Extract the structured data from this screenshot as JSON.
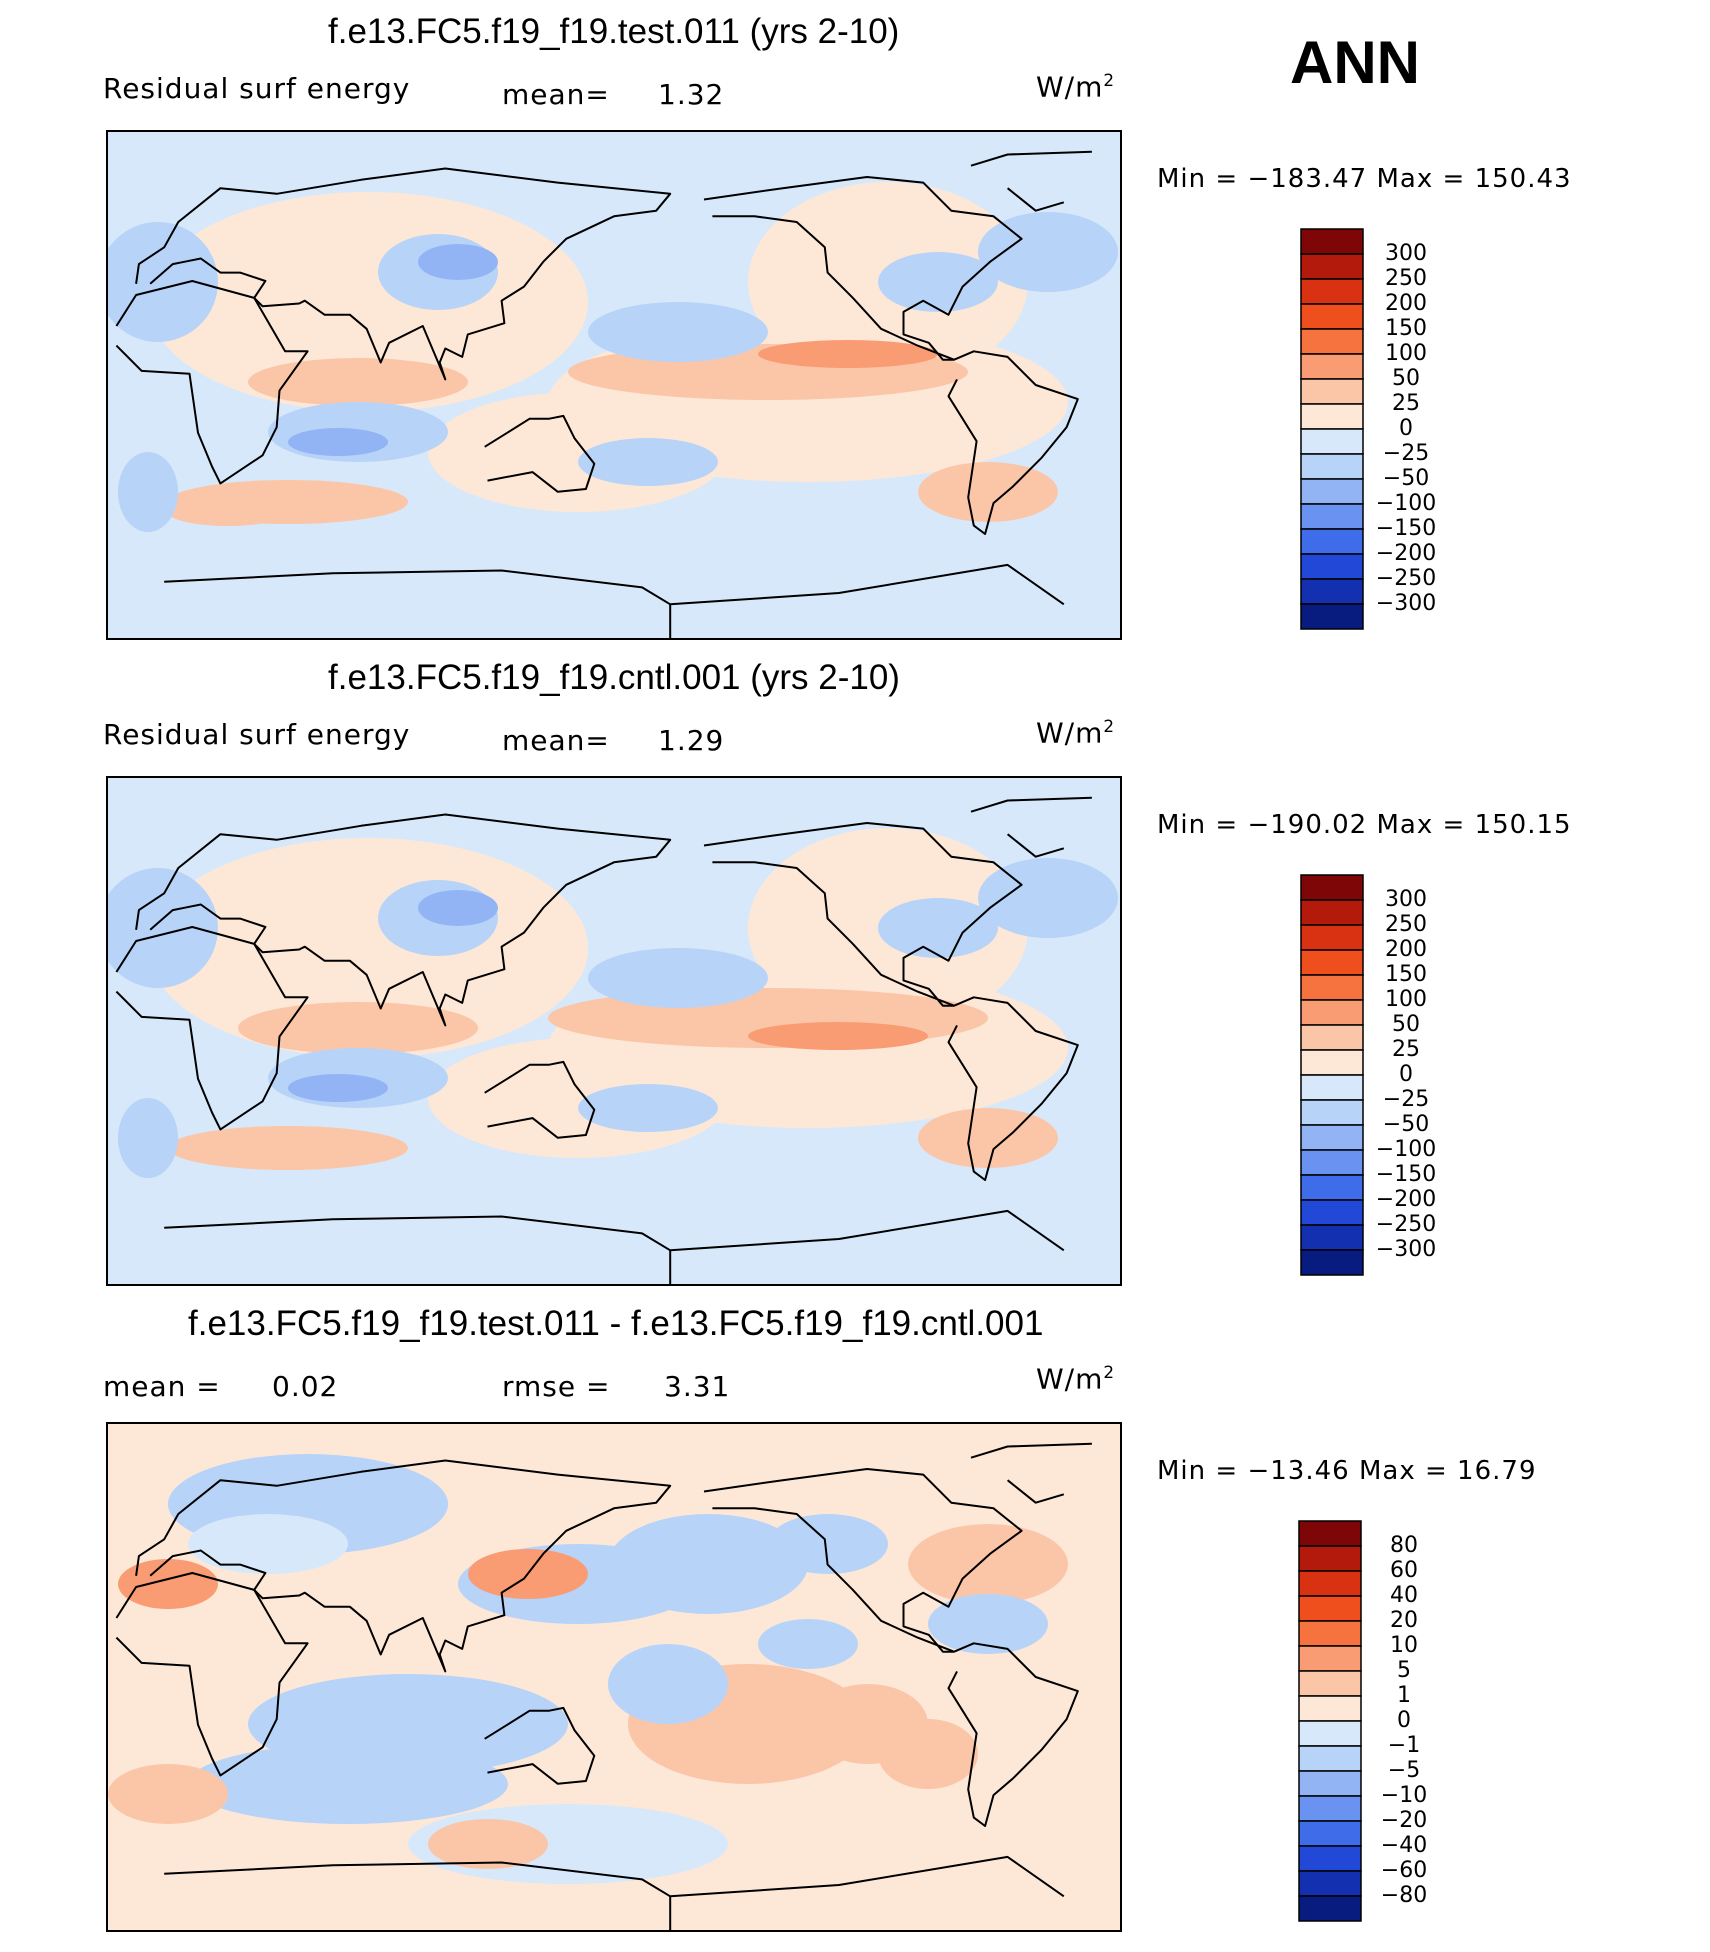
{
  "season": "ANN",
  "colors": {
    "positive": [
      "#FDE8D8",
      "#FBC6A8",
      "#F99C73",
      "#F6723F",
      "#EF4F1C",
      "#D83212",
      "#B31A0C",
      "#7E0607"
    ],
    "negative": [
      "#D6E8FA",
      "#B8D3F8",
      "#92B4F5",
      "#6A92F0",
      "#3F6DEA",
      "#2248D8",
      "#1230B0",
      "#081C80"
    ]
  },
  "panels": [
    {
      "title": "f.e13.FC5.f19_f19.test.011 (yrs 2-10)",
      "left_label": "Residual surf energy",
      "mid_label": "mean=",
      "mid_value": "1.32",
      "units_base": "W/m",
      "units_exp": "2",
      "min_label": "Min",
      "min_value": "−183.47",
      "max_label": "Max",
      "max_value": "150.43",
      "colorbar_levels": [
        "300",
        "250",
        "200",
        "150",
        "100",
        "50",
        "25",
        "0",
        "−25",
        "−50",
        "−100",
        "−150",
        "−200",
        "−250",
        "−300"
      ]
    },
    {
      "title": "f.e13.FC5.f19_f19.cntl.001 (yrs 2-10)",
      "left_label": "Residual surf energy",
      "mid_label": "mean=",
      "mid_value": "1.29",
      "units_base": "W/m",
      "units_exp": "2",
      "min_label": "Min",
      "min_value": "−190.02",
      "max_label": "Max",
      "max_value": "150.15",
      "colorbar_levels": [
        "300",
        "250",
        "200",
        "150",
        "100",
        "50",
        "25",
        "0",
        "−25",
        "−50",
        "−100",
        "−150",
        "−200",
        "−250",
        "−300"
      ]
    },
    {
      "title": "f.e13.FC5.f19_f19.test.011 - f.e13.FC5.f19_f19.cntl.001",
      "left_label": "mean =",
      "left_value": "0.02",
      "mid_label": "rmse =",
      "mid_value": "3.31",
      "units_base": "W/m",
      "units_exp": "2",
      "min_label": "Min",
      "min_value": "−13.46",
      "max_label": "Max",
      "max_value": "16.79",
      "colorbar_levels": [
        "80",
        "60",
        "40",
        "20",
        "10",
        "5",
        "1",
        "0",
        "−1",
        "−5",
        "−10",
        "−20",
        "−40",
        "−60",
        "−80"
      ]
    }
  ],
  "chart_data": [
    {
      "type": "heatmap",
      "title": "f.e13.FC5.f19_f19.test.011 (yrs 2-10)",
      "variable": "Residual surf energy",
      "units": "W/m2",
      "mean": 1.32,
      "min": -183.47,
      "max": 150.43,
      "contour_levels": [
        -300,
        -250,
        -200,
        -150,
        -100,
        -50,
        -25,
        0,
        25,
        50,
        100,
        150,
        200,
        250,
        300
      ]
    },
    {
      "type": "heatmap",
      "title": "f.e13.FC5.f19_f19.cntl.001 (yrs 2-10)",
      "variable": "Residual surf energy",
      "units": "W/m2",
      "mean": 1.29,
      "min": -190.02,
      "max": 150.15,
      "contour_levels": [
        -300,
        -250,
        -200,
        -150,
        -100,
        -50,
        -25,
        0,
        25,
        50,
        100,
        150,
        200,
        250,
        300
      ]
    },
    {
      "type": "heatmap",
      "title": "f.e13.FC5.f19_f19.test.011 - f.e13.FC5.f19_f19.cntl.001",
      "units": "W/m2",
      "mean": 0.02,
      "rmse": 3.31,
      "min": -13.46,
      "max": 16.79,
      "contour_levels": [
        -80,
        -60,
        -40,
        -20,
        -10,
        -5,
        -1,
        0,
        1,
        5,
        10,
        20,
        40,
        60,
        80
      ]
    }
  ]
}
